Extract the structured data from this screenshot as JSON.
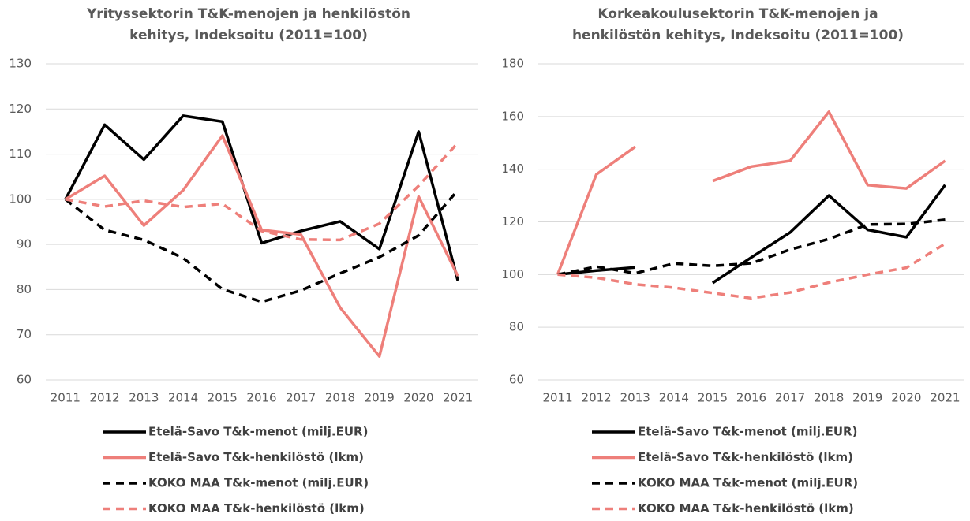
{
  "chart_data": [
    {
      "type": "line",
      "title": [
        "Yrityssektorin T&K-menojen ja henkilöstön",
        "kehitys, Indeksoitu (2011=100)"
      ],
      "categories": [
        "2011",
        "2012",
        "2013",
        "2014",
        "2015",
        "2016",
        "2017",
        "2018",
        "2019",
        "2020",
        "2021"
      ],
      "ylim": [
        60,
        130
      ],
      "yticks": [
        60,
        70,
        80,
        90,
        100,
        110,
        120,
        130
      ],
      "grid": true,
      "series": [
        {
          "name": "Etelä-Savo T&k-menot (milj.EUR)",
          "color": "#000000",
          "dashed": false,
          "values": [
            100,
            116.5,
            108.8,
            118.5,
            117.2,
            90.3,
            93,
            95.1,
            89,
            115,
            82
          ]
        },
        {
          "name": "Etelä-Savo T&k-henkilöstö (lkm)",
          "color": "#ee7f7a",
          "dashed": false,
          "values": [
            100,
            105.2,
            94.2,
            102,
            114.1,
            93.2,
            92.2,
            76,
            65.2,
            100.6,
            83
          ]
        },
        {
          "name": "KOKO MAA T&k-menot (milj.EUR)",
          "color": "#000000",
          "dashed": true,
          "values": [
            100,
            93.2,
            91,
            87,
            80.1,
            77.3,
            79.8,
            83.6,
            87.2,
            92,
            102
          ]
        },
        {
          "name": "KOKO MAA T&k-henkilöstö (lkm)",
          "color": "#ee7f7a",
          "dashed": true,
          "values": [
            100,
            98.4,
            99.7,
            98.3,
            99,
            93,
            91.1,
            91,
            94.6,
            103,
            112.5
          ]
        }
      ]
    },
    {
      "type": "line",
      "title": [
        "Korkeakoulusektorin T&K-menojen ja",
        "henkilöstön kehitys, Indeksoitu (2011=100)"
      ],
      "categories": [
        "2011",
        "2012",
        "2013",
        "2014",
        "2015",
        "2016",
        "2017",
        "2018",
        "2019",
        "2020",
        "2021"
      ],
      "ylim": [
        60,
        180
      ],
      "yticks": [
        60,
        80,
        100,
        120,
        140,
        160,
        180
      ],
      "grid": true,
      "series": [
        {
          "name": "Etelä-Savo T&k-menot (milj.EUR)",
          "color": "#000000",
          "dashed": false,
          "values": [
            100,
            101.5,
            102.7,
            null,
            96.8,
            106.5,
            116,
            130,
            117,
            114.2,
            134
          ]
        },
        {
          "name": "Etelä-Savo T&k-henkilöstö (lkm)",
          "color": "#ee7f7a",
          "dashed": false,
          "values": [
            100,
            138,
            148.5,
            null,
            135.5,
            141,
            143.2,
            161.8,
            134,
            132.7,
            143.2
          ]
        },
        {
          "name": "KOKO MAA T&k-menot (milj.EUR)",
          "color": "#000000",
          "dashed": true,
          "values": [
            100,
            103,
            100.5,
            104.2,
            103.3,
            104.3,
            109.5,
            113.5,
            119,
            119.2,
            120.8
          ]
        },
        {
          "name": "KOKO MAA T&k-henkilöstö (lkm)",
          "color": "#ee7f7a",
          "dashed": true,
          "values": [
            100,
            98.8,
            96.3,
            95,
            93,
            91,
            93.2,
            97,
            100,
            102.6,
            111.7
          ]
        }
      ]
    }
  ]
}
